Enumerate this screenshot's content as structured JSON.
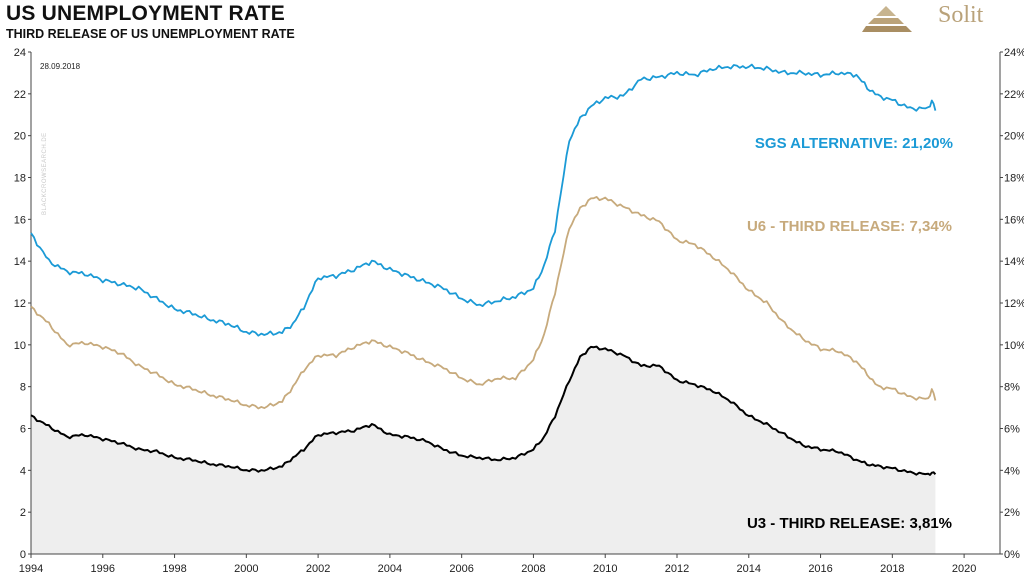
{
  "header": {
    "title": "US UNEMPLOYMENT RATE",
    "subtitle": "THIRD RELEASE OF US UNEMPLOYMENT RATE",
    "logo_text": "Solit"
  },
  "date_stamp": "28.09.2018",
  "watermark": "BLACKCROWSEARCH.DE",
  "colors": {
    "sgs": "#1b9ad6",
    "u6": "#c7aa7c",
    "u3": "#000000",
    "u3_fill": "#eeeeee",
    "logo": "#b9a27a"
  },
  "chart_data": {
    "type": "line",
    "title": "US UNEMPLOYMENT RATE",
    "subtitle": "THIRD RELEASE OF US UNEMPLOYMENT RATE",
    "x_ticks": [
      "1994",
      "1996",
      "1998",
      "2000",
      "2002",
      "2004",
      "2006",
      "2008",
      "2010",
      "2012",
      "2014",
      "2016",
      "2018",
      "2020"
    ],
    "xlim": [
      1994,
      2021
    ],
    "ylim": [
      0,
      24
    ],
    "y_ticks_left": [
      "0",
      "2",
      "4",
      "6",
      "8",
      "10",
      "12",
      "14",
      "16",
      "18",
      "20",
      "22",
      "24"
    ],
    "y_ticks_right": [
      "0%",
      "2%",
      "4%",
      "6%",
      "8%",
      "10%",
      "12%",
      "14%",
      "16%",
      "18%",
      "20%",
      "22%",
      "24%"
    ],
    "grid": false,
    "series": [
      {
        "name": "SGS ALTERNATIVE",
        "label": "SGS ALTERNATIVE: 21,20%",
        "color": "#1b9ad6",
        "x": [
          1994,
          1994.5,
          1995,
          1995.5,
          1996,
          1996.5,
          1997,
          1997.5,
          1998,
          1998.5,
          1999,
          1999.5,
          2000,
          2000.5,
          2001,
          2001.3,
          2001.6,
          2002,
          2002.5,
          2003,
          2003.5,
          2004,
          2004.5,
          2005,
          2005.5,
          2006,
          2006.5,
          2007,
          2007.5,
          2008,
          2008.3,
          2008.6,
          2009,
          2009.3,
          2009.6,
          2010,
          2010.5,
          2011,
          2011.5,
          2012,
          2012.5,
          2013,
          2013.5,
          2014,
          2014.5,
          2015,
          2015.5,
          2016,
          2016.5,
          2017,
          2017.3,
          2017.6,
          2018,
          2018.5,
          2019,
          2019.1,
          2019.2
        ],
        "values": [
          15.3,
          14.0,
          13.5,
          13.4,
          13.1,
          12.9,
          12.7,
          12.2,
          11.7,
          11.5,
          11.2,
          11.0,
          10.6,
          10.5,
          10.6,
          11.0,
          11.8,
          13.2,
          13.3,
          13.6,
          14.0,
          13.6,
          13.3,
          13.0,
          12.7,
          12.2,
          11.9,
          12.1,
          12.3,
          12.7,
          13.8,
          15.5,
          19.8,
          20.8,
          21.4,
          21.8,
          21.9,
          22.7,
          22.8,
          23.0,
          22.9,
          23.2,
          23.3,
          23.3,
          23.2,
          23.0,
          23.0,
          22.9,
          23.0,
          22.9,
          22.3,
          21.9,
          21.7,
          21.3,
          21.3,
          21.7,
          21.2
        ]
      },
      {
        "name": "U6 - THIRD RELEASE",
        "label": "U6 - THIRD RELEASE: 7,34%",
        "color": "#c7aa7c",
        "x": [
          1994,
          1994.5,
          1995,
          1995.5,
          1996,
          1996.5,
          1997,
          1997.5,
          1998,
          1998.5,
          1999,
          1999.5,
          2000,
          2000.5,
          2001,
          2001.3,
          2001.6,
          2002,
          2002.5,
          2003,
          2003.5,
          2004,
          2004.5,
          2005,
          2005.5,
          2006,
          2006.5,
          2007,
          2007.5,
          2008,
          2008.3,
          2008.6,
          2009,
          2009.3,
          2009.6,
          2010,
          2010.5,
          2011,
          2011.5,
          2012,
          2012.5,
          2013,
          2013.5,
          2014,
          2014.5,
          2015,
          2015.5,
          2016,
          2016.5,
          2017,
          2017.3,
          2017.6,
          2018,
          2018.5,
          2019,
          2019.1,
          2019.2
        ],
        "values": [
          11.8,
          11.0,
          10.0,
          10.1,
          9.9,
          9.6,
          9.0,
          8.6,
          8.1,
          7.9,
          7.6,
          7.4,
          7.1,
          7.0,
          7.3,
          8.0,
          8.8,
          9.5,
          9.5,
          9.9,
          10.2,
          9.9,
          9.6,
          9.2,
          8.9,
          8.4,
          8.1,
          8.4,
          8.4,
          9.3,
          10.5,
          12.5,
          15.6,
          16.5,
          17.0,
          17.0,
          16.6,
          16.2,
          15.9,
          15.0,
          14.8,
          14.2,
          13.5,
          12.6,
          12.0,
          11.0,
          10.3,
          9.8,
          9.7,
          9.2,
          8.6,
          8.0,
          7.9,
          7.5,
          7.4,
          7.9,
          7.34
        ]
      },
      {
        "name": "U3 - THIRD RELEASE",
        "label": "U3 - THIRD RELEASE: 3,81%",
        "color": "#000000",
        "x": [
          1994,
          1994.5,
          1995,
          1995.5,
          1996,
          1996.5,
          1997,
          1997.5,
          1998,
          1998.5,
          1999,
          1999.5,
          2000,
          2000.5,
          2001,
          2001.3,
          2001.6,
          2002,
          2002.5,
          2003,
          2003.5,
          2004,
          2004.5,
          2005,
          2005.5,
          2006,
          2006.5,
          2007,
          2007.5,
          2008,
          2008.3,
          2008.6,
          2009,
          2009.3,
          2009.6,
          2010,
          2010.5,
          2011,
          2011.5,
          2012,
          2012.5,
          2013,
          2013.5,
          2014,
          2014.5,
          2015,
          2015.5,
          2016,
          2016.5,
          2017,
          2017.3,
          2017.6,
          2018,
          2018.5,
          2019,
          2019.1,
          2019.2
        ],
        "values": [
          6.6,
          6.1,
          5.6,
          5.7,
          5.5,
          5.3,
          5.0,
          4.9,
          4.6,
          4.5,
          4.3,
          4.2,
          4.0,
          4.0,
          4.2,
          4.6,
          5.0,
          5.7,
          5.8,
          5.9,
          6.2,
          5.7,
          5.6,
          5.4,
          5.0,
          4.7,
          4.6,
          4.5,
          4.6,
          5.0,
          5.6,
          6.6,
          8.3,
          9.4,
          9.9,
          9.8,
          9.5,
          9.0,
          9.0,
          8.3,
          8.1,
          7.8,
          7.3,
          6.6,
          6.2,
          5.7,
          5.2,
          5.0,
          4.9,
          4.5,
          4.3,
          4.2,
          4.1,
          3.9,
          3.8,
          3.9,
          3.81
        ]
      }
    ]
  }
}
